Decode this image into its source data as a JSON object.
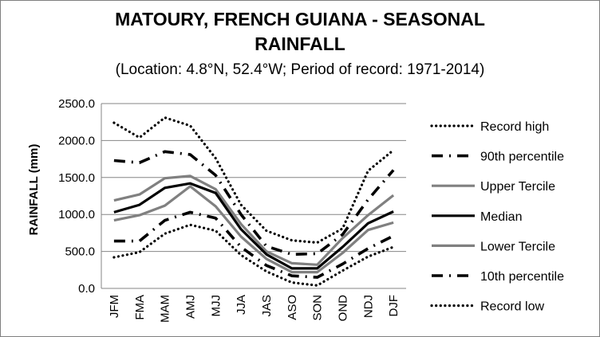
{
  "chart_data": {
    "type": "line",
    "title_line1": "MATOURY, FRENCH GUIANA - SEASONAL",
    "title_line2": "RAINFALL",
    "subtitle": "(Location: 4.8°N, 52.4°W; Period of record: 1971-2014)",
    "ylabel": "RAINFALL (mm)",
    "xlabel": "",
    "ylim": [
      0,
      2500
    ],
    "yticks": [
      "0.0",
      "500.0",
      "1000.0",
      "1500.0",
      "2000.0",
      "2500.0"
    ],
    "categories": [
      "JFM",
      "FMA",
      "MAM",
      "AMJ",
      "MJJ",
      "JJA",
      "JAS",
      "ASO",
      "SON",
      "OND",
      "NDJ",
      "DJF"
    ],
    "grid": true,
    "legend_position": "right",
    "series": [
      {
        "name": "Record high",
        "style": "dotted",
        "color": "#000000",
        "values": [
          2240,
          2040,
          2310,
          2200,
          1760,
          1130,
          780,
          650,
          620,
          810,
          1590,
          1870
        ]
      },
      {
        "name": "90th percentile",
        "style": "dashdot",
        "color": "#000000",
        "values": [
          1730,
          1700,
          1850,
          1810,
          1530,
          1000,
          570,
          460,
          470,
          730,
          1200,
          1600
        ]
      },
      {
        "name": "Upper Tercile",
        "style": "solid-gray",
        "color": "#808080",
        "values": [
          1190,
          1270,
          1490,
          1520,
          1340,
          870,
          500,
          340,
          320,
          680,
          990,
          1260
        ]
      },
      {
        "name": "Median",
        "style": "solid-black",
        "color": "#000000",
        "values": [
          1030,
          1130,
          1360,
          1420,
          1290,
          800,
          460,
          270,
          270,
          560,
          880,
          1040
        ]
      },
      {
        "name": "Lower Tercile",
        "style": "solid-gray",
        "color": "#808080",
        "values": [
          920,
          990,
          1120,
          1380,
          1110,
          700,
          400,
          220,
          220,
          480,
          790,
          890
        ]
      },
      {
        "name": "10th percentile",
        "style": "dashdot",
        "color": "#000000",
        "values": [
          640,
          640,
          920,
          1030,
          950,
          560,
          310,
          170,
          150,
          330,
          540,
          710
        ]
      },
      {
        "name": "Record low",
        "style": "dotted",
        "color": "#000000",
        "values": [
          420,
          490,
          740,
          860,
          780,
          450,
          230,
          80,
          40,
          240,
          430,
          560
        ]
      }
    ]
  }
}
